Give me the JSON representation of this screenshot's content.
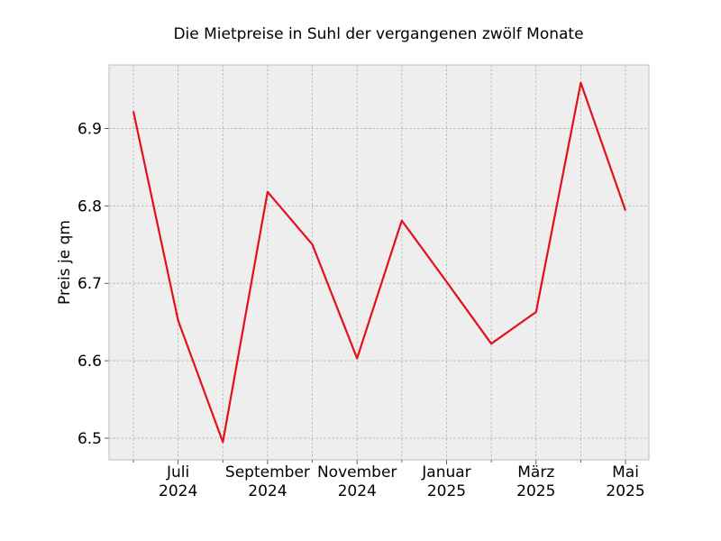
{
  "chart_data": {
    "type": "line",
    "title": "Die Mietpreise in Suhl der vergangenen zwölf Monate",
    "xlabel": "",
    "ylabel": "Preis je qm",
    "x": [
      "2024-06",
      "2024-07",
      "2024-08",
      "2024-09",
      "2024-10",
      "2024-11",
      "2024-12",
      "2025-01",
      "2025-02",
      "2025-03",
      "2025-04",
      "2025-05"
    ],
    "series": [
      {
        "values": [
          6.922,
          6.652,
          6.495,
          6.818,
          6.75,
          6.603,
          6.781,
          6.702,
          6.622,
          6.663,
          6.959,
          6.794
        ]
      }
    ],
    "x_tick_labels": [
      {
        "month": "Juli",
        "year": "2024"
      },
      {
        "month": "September",
        "year": "2024"
      },
      {
        "month": "November",
        "year": "2024"
      },
      {
        "month": "Januar",
        "year": "2025"
      },
      {
        "month": "März",
        "year": "2025"
      },
      {
        "month": "Mai",
        "year": "2025"
      }
    ],
    "yticks": [
      6.5,
      6.6,
      6.7,
      6.8,
      6.9
    ],
    "ytick_labels": [
      "6.5",
      "6.6",
      "6.7",
      "6.8",
      "6.9"
    ],
    "ylim": [
      6.472,
      6.982
    ],
    "grid": true,
    "colors": {
      "line": "#e3101c",
      "plot_background": "#eeeeee",
      "grid": "#b2b2b2",
      "frame": "#bcbcbc"
    }
  }
}
